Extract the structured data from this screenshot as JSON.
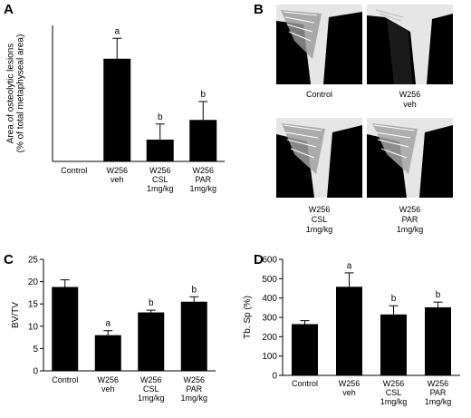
{
  "panels": {
    "A": {
      "letter": "A"
    },
    "B": {
      "letter": "B"
    },
    "C": {
      "letter": "C"
    },
    "D": {
      "letter": "D"
    }
  },
  "micro_labels": [
    [
      "Control"
    ],
    [
      "W256",
      "veh"
    ],
    [
      "W256",
      "CSL",
      "1mg/kg"
    ],
    [
      "W256",
      "PAR",
      "1mg/kg"
    ]
  ],
  "chart_data": [
    {
      "id": "A",
      "type": "bar",
      "categories": [
        [
          "Control"
        ],
        [
          "W256",
          "veh"
        ],
        [
          "W256",
          "CSL",
          "1mg/kg"
        ],
        [
          "W256",
          "PAR",
          "1mg/kg"
        ]
      ],
      "values": [
        0,
        15.1,
        3.2,
        6.1
      ],
      "errors": [
        0,
        3.0,
        2.3,
        2.7
      ],
      "annotations": [
        "",
        "a",
        "b",
        "b"
      ],
      "ylabel": [
        "Area of osteolytic lesions",
        "(% of total metaphyseal area)"
      ],
      "ylim": [
        0,
        20
      ],
      "yticks": [],
      "grid": false
    },
    {
      "id": "C",
      "type": "bar",
      "categories": [
        [
          "Control"
        ],
        [
          "W256",
          "veh"
        ],
        [
          "W256",
          "CSL",
          "1mg/kg"
        ],
        [
          "W256",
          "PAR",
          "1mg/kg"
        ]
      ],
      "values": [
        18.8,
        8.0,
        13.1,
        15.5
      ],
      "errors": [
        1.6,
        1.0,
        0.5,
        1.1
      ],
      "annotations": [
        "",
        "a",
        "b",
        "b"
      ],
      "ylabel": [
        "BV/TV"
      ],
      "ylim": [
        0,
        25
      ],
      "yticks": [
        0,
        5,
        10,
        15,
        20,
        25
      ],
      "grid": false
    },
    {
      "id": "D",
      "type": "bar",
      "categories": [
        [
          "Control"
        ],
        [
          "W256",
          "veh"
        ],
        [
          "W256",
          "CSL",
          "1mg/kg"
        ],
        [
          "W256",
          "PAR",
          "1mg/kg"
        ]
      ],
      "values": [
        265,
        458,
        315,
        352
      ],
      "errors": [
        18,
        72,
        45,
        27
      ],
      "annotations": [
        "",
        "a",
        "b",
        "b"
      ],
      "ylabel": [
        "Tb. Sp (%)"
      ],
      "ylim": [
        0,
        600
      ],
      "yticks": [
        0,
        100,
        200,
        300,
        400,
        500,
        600
      ],
      "grid": false
    }
  ]
}
